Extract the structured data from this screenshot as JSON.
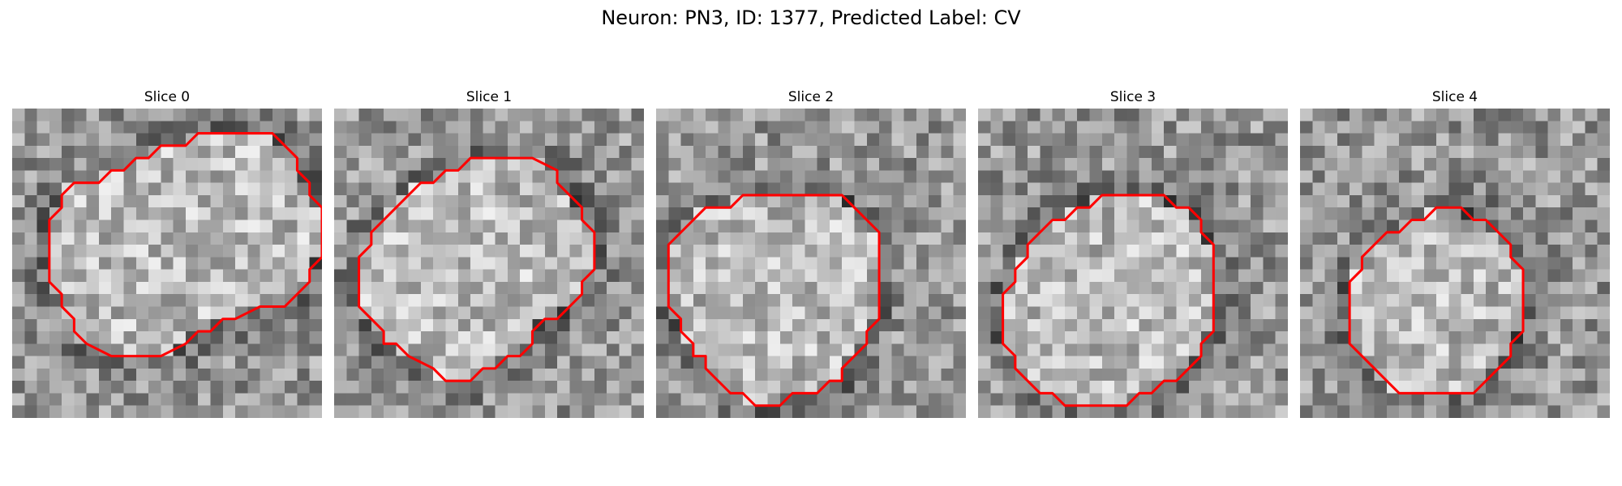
{
  "figure": {
    "title": "Neuron: PN3, ID: 1377, Predicted Label: CV",
    "contour_color": "#ff0000",
    "colormap": "grayscale",
    "grid_size": 25
  },
  "panels": [
    {
      "label": "Slice 0",
      "contour": [
        [
          15,
          2
        ],
        [
          21,
          2
        ],
        [
          23,
          4
        ],
        [
          23,
          5
        ],
        [
          24,
          6
        ],
        [
          24,
          7
        ],
        [
          25,
          8
        ],
        [
          25,
          12
        ],
        [
          24,
          13
        ],
        [
          24,
          14
        ],
        [
          22,
          16
        ],
        [
          20,
          16
        ],
        [
          18,
          17
        ],
        [
          17,
          17
        ],
        [
          16,
          18
        ],
        [
          15,
          18
        ],
        [
          14,
          19
        ],
        [
          12,
          20
        ],
        [
          8,
          20
        ],
        [
          6,
          19
        ],
        [
          5,
          18
        ],
        [
          5,
          17
        ],
        [
          4,
          16
        ],
        [
          4,
          15
        ],
        [
          3,
          14
        ],
        [
          3,
          9
        ],
        [
          4,
          8
        ],
        [
          4,
          7
        ],
        [
          5,
          6
        ],
        [
          7,
          6
        ],
        [
          8,
          5
        ],
        [
          9,
          5
        ],
        [
          10,
          4
        ],
        [
          11,
          4
        ],
        [
          12,
          3
        ],
        [
          14,
          3
        ]
      ]
    },
    {
      "label": "Slice 1",
      "contour": [
        [
          12,
          4
        ],
        [
          16,
          4
        ],
        [
          18,
          5
        ],
        [
          18,
          6
        ],
        [
          19,
          7
        ],
        [
          20,
          8
        ],
        [
          20,
          9
        ],
        [
          21,
          10
        ],
        [
          21,
          13
        ],
        [
          20,
          14
        ],
        [
          20,
          15
        ],
        [
          19,
          16
        ],
        [
          18,
          17
        ],
        [
          17,
          17
        ],
        [
          16,
          18
        ],
        [
          16,
          19
        ],
        [
          15,
          20
        ],
        [
          14,
          20
        ],
        [
          13,
          21
        ],
        [
          12,
          21
        ],
        [
          11,
          22
        ],
        [
          9,
          22
        ],
        [
          8,
          21
        ],
        [
          6,
          20
        ],
        [
          5,
          19
        ],
        [
          4,
          19
        ],
        [
          4,
          18
        ],
        [
          3,
          17
        ],
        [
          2,
          16
        ],
        [
          2,
          12
        ],
        [
          3,
          11
        ],
        [
          3,
          10
        ],
        [
          4,
          9
        ],
        [
          5,
          8
        ],
        [
          6,
          7
        ],
        [
          7,
          6
        ],
        [
          8,
          6
        ],
        [
          9,
          5
        ],
        [
          10,
          5
        ],
        [
          11,
          4
        ]
      ]
    },
    {
      "label": "Slice 2",
      "contour": [
        [
          8,
          7
        ],
        [
          15,
          7
        ],
        [
          16,
          8
        ],
        [
          17,
          9
        ],
        [
          18,
          10
        ],
        [
          18,
          17
        ],
        [
          17,
          18
        ],
        [
          17,
          19
        ],
        [
          16,
          20
        ],
        [
          15,
          21
        ],
        [
          15,
          22
        ],
        [
          14,
          22
        ],
        [
          13,
          23
        ],
        [
          11,
          23
        ],
        [
          10,
          24
        ],
        [
          8,
          24
        ],
        [
          7,
          23
        ],
        [
          6,
          23
        ],
        [
          5,
          22
        ],
        [
          4,
          21
        ],
        [
          4,
          20
        ],
        [
          3,
          20
        ],
        [
          3,
          19
        ],
        [
          2,
          18
        ],
        [
          2,
          17
        ],
        [
          1,
          16
        ],
        [
          1,
          11
        ],
        [
          2,
          10
        ],
        [
          3,
          9
        ],
        [
          4,
          8
        ],
        [
          5,
          8
        ],
        [
          6,
          8
        ],
        [
          7,
          7
        ]
      ]
    },
    {
      "label": "Slice 3",
      "contour": [
        [
          12,
          7
        ],
        [
          15,
          7
        ],
        [
          16,
          8
        ],
        [
          17,
          8
        ],
        [
          18,
          9
        ],
        [
          18,
          10
        ],
        [
          19,
          11
        ],
        [
          19,
          18
        ],
        [
          18,
          19
        ],
        [
          18,
          20
        ],
        [
          17,
          21
        ],
        [
          16,
          22
        ],
        [
          15,
          22
        ],
        [
          14,
          23
        ],
        [
          13,
          23
        ],
        [
          12,
          24
        ],
        [
          7,
          24
        ],
        [
          6,
          23
        ],
        [
          5,
          23
        ],
        [
          4,
          22
        ],
        [
          3,
          21
        ],
        [
          3,
          20
        ],
        [
          2,
          19
        ],
        [
          2,
          15
        ],
        [
          3,
          14
        ],
        [
          3,
          13
        ],
        [
          4,
          12
        ],
        [
          4,
          11
        ],
        [
          5,
          10
        ],
        [
          6,
          9
        ],
        [
          7,
          9
        ],
        [
          8,
          8
        ],
        [
          9,
          8
        ],
        [
          10,
          7
        ]
      ]
    },
    {
      "label": "Slice 4",
      "contour": [
        [
          12,
          8
        ],
        [
          13,
          8
        ],
        [
          14,
          9
        ],
        [
          15,
          9
        ],
        [
          16,
          10
        ],
        [
          17,
          11
        ],
        [
          17,
          12
        ],
        [
          18,
          13
        ],
        [
          18,
          18
        ],
        [
          17,
          19
        ],
        [
          17,
          20
        ],
        [
          16,
          21
        ],
        [
          15,
          22
        ],
        [
          14,
          23
        ],
        [
          8,
          23
        ],
        [
          7,
          22
        ],
        [
          6,
          21
        ],
        [
          5,
          20
        ],
        [
          4,
          19
        ],
        [
          4,
          14
        ],
        [
          5,
          13
        ],
        [
          5,
          12
        ],
        [
          6,
          11
        ],
        [
          7,
          10
        ],
        [
          8,
          10
        ],
        [
          9,
          9
        ],
        [
          10,
          9
        ],
        [
          11,
          8
        ]
      ]
    }
  ]
}
